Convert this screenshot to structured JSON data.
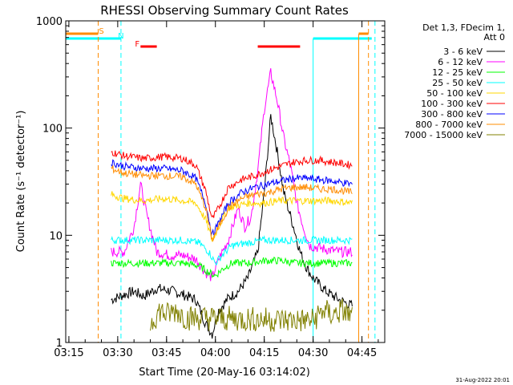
{
  "chart_data": {
    "type": "line",
    "title": "RHESSI Observing Summary Count Rates",
    "xlabel": "Start Time (20-May-16 03:14:02)",
    "ylabel": "Count Rate (s⁻¹ detector⁻¹)",
    "y_scale": "log",
    "ylim": [
      1,
      1000
    ],
    "xlim": [
      "03:14:02",
      "04:52"
    ],
    "x_ticks": [
      "03:15",
      "03:30",
      "03:45",
      "04:00",
      "04:15",
      "04:30",
      "04:45"
    ],
    "y_ticks": [
      "1",
      "10",
      "100",
      "1000"
    ],
    "legend_header": [
      "Det 1,3, FDecim 1,",
      "Att 0"
    ],
    "legend_position": "top-right",
    "footer_date": "31-Aug-2022 20:01",
    "annotations": [
      {
        "label": "S",
        "time": "03:25",
        "color": "#ff8c00"
      },
      {
        "label": "N",
        "time": "03:31",
        "color": "#00ffff"
      },
      {
        "label": "F",
        "time": "03:36",
        "color": "#ff0000"
      }
    ],
    "flags": {
      "saa_bars": [
        {
          "start": "03:14",
          "end": "03:24"
        },
        {
          "start": "04:44",
          "end": "04:47"
        }
      ],
      "night_bars": [
        {
          "start": "03:14",
          "end": "03:31"
        },
        {
          "start": "04:30",
          "end": "04:48"
        }
      ],
      "flare_bars": [
        {
          "start": "03:37",
          "end": "03:42"
        },
        {
          "start": "04:13",
          "end": "04:26"
        }
      ],
      "vlines_orange": [
        "03:24",
        "04:47"
      ],
      "vlines_cyan_dashed": [
        "03:31",
        "04:49"
      ],
      "vlines_cyan_solid": [
        "04:30"
      ],
      "vlines_orange_solid": [
        "04:44"
      ]
    },
    "series": [
      {
        "name": "3 - 6 keV",
        "color": "#000000",
        "points": [
          [
            "03:28",
            2.5
          ],
          [
            "03:32",
            2.8
          ],
          [
            "03:35",
            3.0
          ],
          [
            "03:38",
            2.7
          ],
          [
            "03:42",
            3.2
          ],
          [
            "03:47",
            3.0
          ],
          [
            "03:50",
            2.8
          ],
          [
            "03:54",
            2.5
          ],
          [
            "03:57",
            1.5
          ],
          [
            "03:59",
            1.2
          ],
          [
            "04:01",
            2.0
          ],
          [
            "04:04",
            2.6
          ],
          [
            "04:07",
            3.0
          ],
          [
            "04:10",
            4.0
          ],
          [
            "04:13",
            7.0
          ],
          [
            "04:15",
            25
          ],
          [
            "04:17",
            130
          ],
          [
            "04:19",
            60
          ],
          [
            "04:21",
            25
          ],
          [
            "04:24",
            12
          ],
          [
            "04:26",
            7
          ],
          [
            "04:28",
            5
          ],
          [
            "04:30",
            4
          ],
          [
            "04:34",
            3
          ],
          [
            "04:38",
            2.5
          ],
          [
            "04:42",
            2.2
          ]
        ]
      },
      {
        "name": "6 - 12 keV",
        "color": "#ff00ff",
        "points": [
          [
            "03:28",
            7
          ],
          [
            "03:32",
            7
          ],
          [
            "03:35",
            12
          ],
          [
            "03:37",
            30
          ],
          [
            "03:39",
            15
          ],
          [
            "03:42",
            7
          ],
          [
            "03:46",
            6.5
          ],
          [
            "03:50",
            6.5
          ],
          [
            "03:54",
            6
          ],
          [
            "03:57",
            4.5
          ],
          [
            "03:59",
            4
          ],
          [
            "04:01",
            6
          ],
          [
            "04:04",
            9
          ],
          [
            "04:07",
            18
          ],
          [
            "04:09",
            12
          ],
          [
            "04:11",
            15
          ],
          [
            "04:13",
            40
          ],
          [
            "04:15",
            150
          ],
          [
            "04:17",
            330
          ],
          [
            "04:19",
            180
          ],
          [
            "04:21",
            80
          ],
          [
            "04:23",
            45
          ],
          [
            "04:25",
            20
          ],
          [
            "04:27",
            12
          ],
          [
            "04:29",
            8
          ],
          [
            "04:33",
            7.5
          ],
          [
            "04:38",
            7
          ],
          [
            "04:42",
            7
          ]
        ]
      },
      {
        "name": "12 - 25 keV",
        "color": "#00ff00",
        "points": [
          [
            "03:28",
            5.5
          ],
          [
            "03:35",
            5.5
          ],
          [
            "03:42",
            5.5
          ],
          [
            "03:50",
            5.5
          ],
          [
            "03:55",
            5.2
          ],
          [
            "03:58",
            4.5
          ],
          [
            "04:00",
            4.2
          ],
          [
            "04:02",
            4.8
          ],
          [
            "04:05",
            5.5
          ],
          [
            "04:10",
            5.5
          ],
          [
            "04:15",
            5.8
          ],
          [
            "04:20",
            5.8
          ],
          [
            "04:25",
            5.5
          ],
          [
            "04:30",
            5.5
          ],
          [
            "04:36",
            5.5
          ],
          [
            "04:42",
            5.5
          ]
        ]
      },
      {
        "name": "25 - 50 keV",
        "color": "#00ffff",
        "points": [
          [
            "03:28",
            9
          ],
          [
            "03:35",
            9
          ],
          [
            "03:42",
            9
          ],
          [
            "03:50",
            9
          ],
          [
            "03:55",
            8.5
          ],
          [
            "03:58",
            7
          ],
          [
            "04:00",
            5.5
          ],
          [
            "04:02",
            6.5
          ],
          [
            "04:05",
            8
          ],
          [
            "04:10",
            8.5
          ],
          [
            "04:15",
            9
          ],
          [
            "04:20",
            9
          ],
          [
            "04:25",
            9
          ],
          [
            "04:30",
            9
          ],
          [
            "04:36",
            9
          ],
          [
            "04:42",
            9
          ]
        ]
      },
      {
        "name": "50 - 100 keV",
        "color": "#ffd700",
        "points": [
          [
            "03:28",
            24
          ],
          [
            "03:32",
            22
          ],
          [
            "03:38",
            21
          ],
          [
            "03:44",
            22
          ],
          [
            "03:50",
            21
          ],
          [
            "03:54",
            20
          ],
          [
            "03:57",
            14
          ],
          [
            "03:59",
            9
          ],
          [
            "04:01",
            12
          ],
          [
            "04:04",
            18
          ],
          [
            "04:10",
            20
          ],
          [
            "04:15",
            20
          ],
          [
            "04:20",
            21
          ],
          [
            "04:25",
            21
          ],
          [
            "04:30",
            21
          ],
          [
            "04:36",
            21
          ],
          [
            "04:42",
            20
          ]
        ]
      },
      {
        "name": "100 - 300 keV",
        "color": "#ff0000",
        "points": [
          [
            "03:28",
            60
          ],
          [
            "03:32",
            55
          ],
          [
            "03:38",
            52
          ],
          [
            "03:44",
            54
          ],
          [
            "03:50",
            52
          ],
          [
            "03:54",
            45
          ],
          [
            "03:57",
            26
          ],
          [
            "03:59",
            14
          ],
          [
            "04:01",
            18
          ],
          [
            "04:04",
            28
          ],
          [
            "04:08",
            33
          ],
          [
            "04:12",
            36
          ],
          [
            "04:16",
            40
          ],
          [
            "04:20",
            44
          ],
          [
            "04:24",
            48
          ],
          [
            "04:28",
            50
          ],
          [
            "04:32",
            50
          ],
          [
            "04:36",
            48
          ],
          [
            "04:42",
            45
          ]
        ]
      },
      {
        "name": "300 - 800 keV",
        "color": "#0000ff",
        "points": [
          [
            "03:28",
            48
          ],
          [
            "03:32",
            44
          ],
          [
            "03:38",
            42
          ],
          [
            "03:44",
            42
          ],
          [
            "03:50",
            40
          ],
          [
            "03:54",
            34
          ],
          [
            "03:57",
            20
          ],
          [
            "03:59",
            10
          ],
          [
            "04:01",
            13
          ],
          [
            "04:04",
            20
          ],
          [
            "04:08",
            25
          ],
          [
            "04:12",
            28
          ],
          [
            "04:16",
            30
          ],
          [
            "04:20",
            32
          ],
          [
            "04:24",
            34
          ],
          [
            "04:28",
            34
          ],
          [
            "04:32",
            33
          ],
          [
            "04:36",
            32
          ],
          [
            "04:42",
            30
          ]
        ]
      },
      {
        "name": "800 - 7000 keV",
        "color": "#ff8c00",
        "points": [
          [
            "03:28",
            42
          ],
          [
            "03:32",
            38
          ],
          [
            "03:38",
            36
          ],
          [
            "03:44",
            36
          ],
          [
            "03:50",
            35
          ],
          [
            "03:54",
            30
          ],
          [
            "03:57",
            18
          ],
          [
            "03:59",
            9
          ],
          [
            "04:01",
            12
          ],
          [
            "04:04",
            18
          ],
          [
            "04:08",
            22
          ],
          [
            "04:12",
            24
          ],
          [
            "04:16",
            25
          ],
          [
            "04:20",
            27
          ],
          [
            "04:24",
            28
          ],
          [
            "04:28",
            28
          ],
          [
            "04:32",
            27
          ],
          [
            "04:36",
            27
          ],
          [
            "04:42",
            25
          ]
        ]
      },
      {
        "name": "7000 - 15000 keV",
        "color": "#808000",
        "points": [
          [
            "03:40",
            1.5
          ],
          [
            "03:43",
            2.0
          ],
          [
            "03:45",
            1.8
          ],
          [
            "03:48",
            2.0
          ],
          [
            "03:51",
            1.7
          ],
          [
            "04:30",
            1.6
          ],
          [
            "04:33",
            2.0
          ],
          [
            "04:36",
            1.8
          ],
          [
            "04:39",
            2.0
          ],
          [
            "04:42",
            1.7
          ]
        ]
      }
    ]
  }
}
